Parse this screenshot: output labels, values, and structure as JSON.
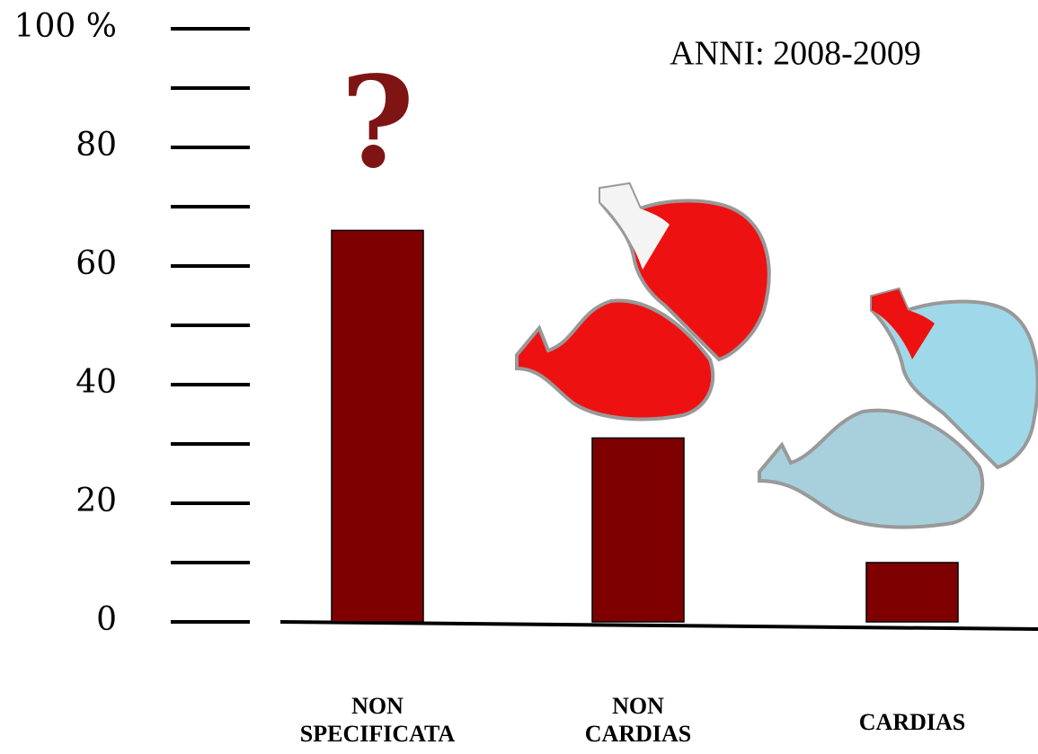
{
  "chart_data": {
    "type": "bar",
    "title": "ANNI: 2008-2009",
    "annotation": "?",
    "categories": [
      "NON SPECIFICATA",
      "NON CARDIAS",
      "CARDIAS"
    ],
    "values": [
      66,
      31,
      10
    ],
    "color": "#7f0000",
    "ylim": [
      0,
      100
    ],
    "yticks": [
      0,
      20,
      40,
      60,
      80,
      {
        "value": 100,
        "label": "100 %"
      }
    ],
    "minor_yticks": [
      10,
      30,
      50,
      70,
      90
    ]
  }
}
